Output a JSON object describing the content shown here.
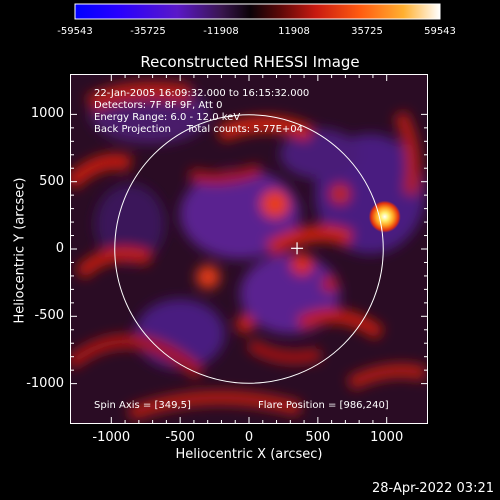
{
  "image": {
    "title": "Reconstructed RHESSI Image",
    "annotations": [
      "22-Jan-2005 16:09:32.000 to 16:15:32.000",
      "Detectors: 7F 8F 9F, Att 0",
      "Energy Range: 6.0 - 12.0 keV",
      "Back Projection     Total counts: 5.77E+04"
    ],
    "spin_axis": "Spin Axis = [349,5]",
    "flare_position": "Flare Position = [986,240]",
    "xlabel": "Heliocentric X (arcsec)",
    "ylabel": "Heliocentric Y (arcsec)",
    "x_ticks": [
      "-1000",
      "-500",
      "0",
      "500",
      "1000"
    ],
    "y_ticks": [
      "1000",
      "500",
      "0",
      "-500",
      "-1000"
    ],
    "x_range": [
      -1300,
      1300
    ],
    "y_range": [
      -1300,
      1300
    ],
    "limb_radius_arcsec": 975,
    "crosshair_arcsec": [
      349,
      5
    ],
    "hotspot_arcsec": [
      986,
      240
    ],
    "colorbar_ticks": [
      "-59543",
      "-35725",
      "-11908",
      "11908",
      "35725",
      "59543"
    ],
    "colormap": [
      "#0000ff",
      "#2a00ff",
      "#5a14c8",
      "#6a2aa0",
      "#3a1650",
      "#120410",
      "#000000",
      "#5a0808",
      "#c81a10",
      "#ff5010",
      "#ffa020",
      "#ffe060",
      "#ffffff"
    ],
    "timestamp": "28-Apr-2022 03:21"
  }
}
